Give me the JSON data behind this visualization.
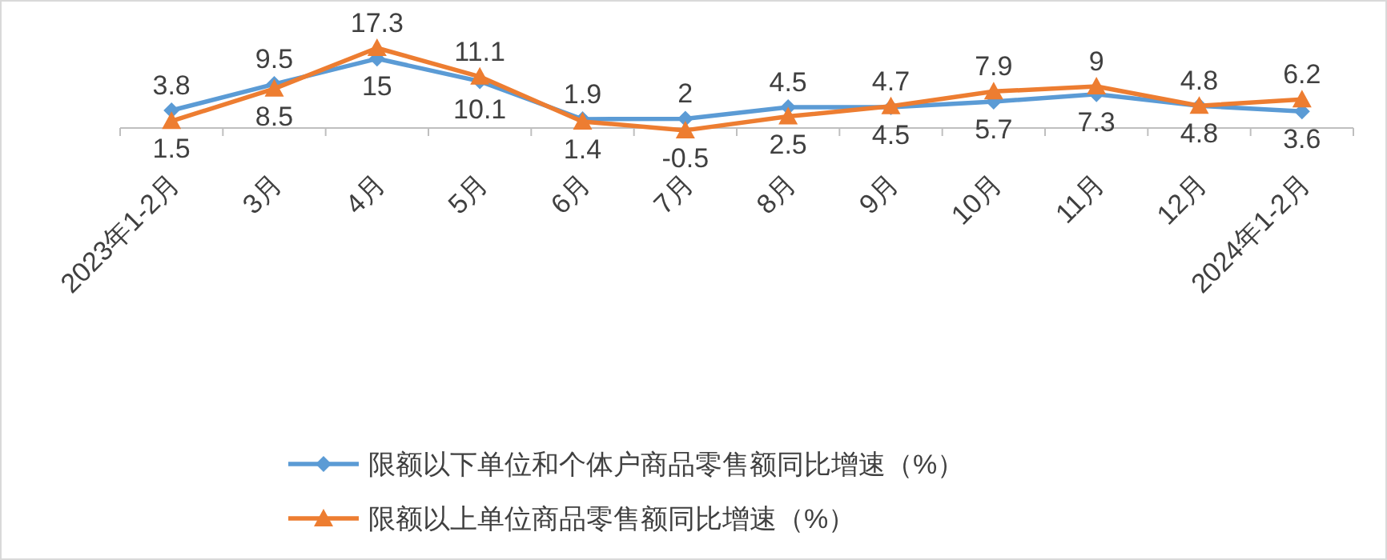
{
  "chart_data": {
    "type": "line",
    "categories": [
      "2023年1-2月",
      "3月",
      "4月",
      "5月",
      "6月",
      "7月",
      "8月",
      "9月",
      "10月",
      "11月",
      "12月",
      "2024年1-2月"
    ],
    "series": [
      {
        "name": "限额以下单位和个体户商品零售额同比增速（%）",
        "color": "#5b9bd5",
        "marker": "diamond",
        "values": [
          3.8,
          9.5,
          15,
          10.1,
          1.9,
          2,
          4.5,
          4.5,
          5.7,
          7.3,
          4.8,
          3.6
        ]
      },
      {
        "name": "限额以上单位商品零售额同比增速（%）",
        "color": "#ed7d31",
        "marker": "triangle",
        "values": [
          1.5,
          8.5,
          17.3,
          11.1,
          1.4,
          -0.5,
          2.5,
          4.7,
          7.9,
          9,
          4.8,
          6.2
        ]
      }
    ],
    "data_labels": true,
    "legend": "bottom",
    "line_style": "solid"
  }
}
